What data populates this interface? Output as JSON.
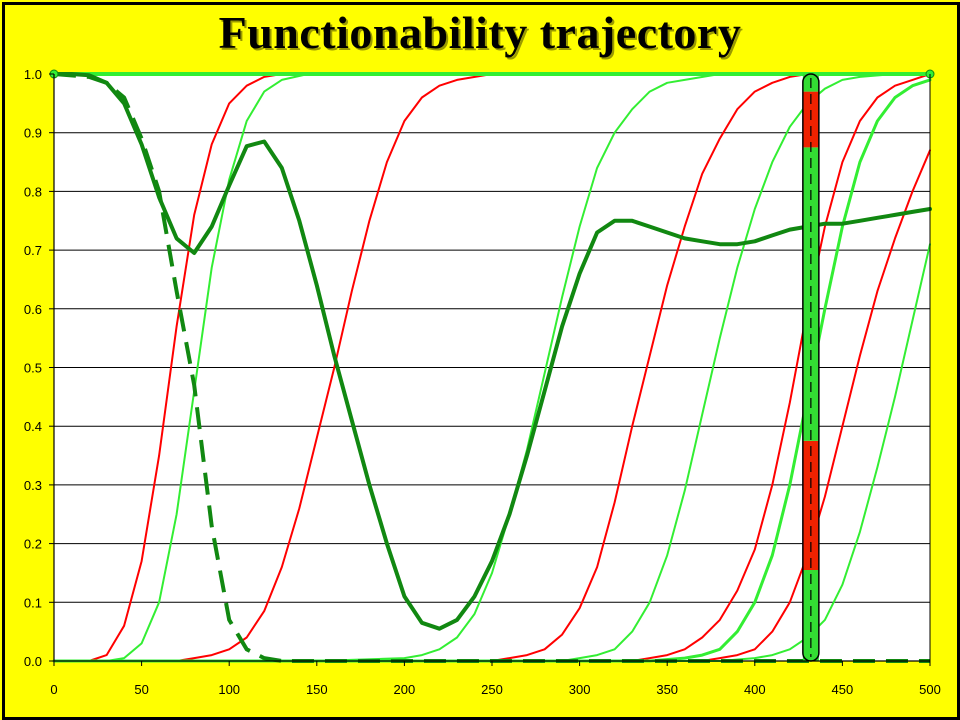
{
  "chart_data": {
    "type": "line",
    "title": "Functionability trajectory",
    "xlabel": "",
    "ylabel": "",
    "xlim": [
      0,
      500
    ],
    "ylim": [
      0,
      1
    ],
    "x_ticks": [
      "0",
      "50",
      "100",
      "150",
      "200",
      "250",
      "300",
      "350",
      "400",
      "450",
      "500"
    ],
    "y_ticks": [
      "0.0",
      "0.1",
      "0.2",
      "0.3",
      "0.4",
      "0.5",
      "0.6",
      "0.7",
      "0.8",
      "0.9",
      "1.0"
    ],
    "grid": true,
    "legend": "none",
    "colors": {
      "page": "#ffff00",
      "plot_area": "#ffffff",
      "red": "#ff0000",
      "light_green": "#33ee33",
      "dark_green": "#118811",
      "bar_green": "#33dd33",
      "bar_red": "#ee2200"
    },
    "series": [
      {
        "color": "#ff0000",
        "width": 2,
        "style": "solid",
        "points": [
          [
            0,
            0
          ],
          [
            20,
            0
          ],
          [
            30,
            0.01
          ],
          [
            40,
            0.06
          ],
          [
            50,
            0.17
          ],
          [
            60,
            0.35
          ],
          [
            70,
            0.57
          ],
          [
            80,
            0.76
          ],
          [
            90,
            0.88
          ],
          [
            100,
            0.95
          ],
          [
            110,
            0.98
          ],
          [
            120,
            0.995
          ],
          [
            130,
            1
          ],
          [
            500,
            1
          ]
        ]
      },
      {
        "color": "#33ee33",
        "width": 2,
        "style": "solid",
        "points": [
          [
            0,
            0
          ],
          [
            30,
            0
          ],
          [
            40,
            0.005
          ],
          [
            50,
            0.03
          ],
          [
            60,
            0.1
          ],
          [
            70,
            0.25
          ],
          [
            80,
            0.46
          ],
          [
            90,
            0.67
          ],
          [
            100,
            0.82
          ],
          [
            110,
            0.92
          ],
          [
            120,
            0.97
          ],
          [
            130,
            0.99
          ],
          [
            145,
            1
          ],
          [
            500,
            1
          ]
        ]
      },
      {
        "color": "#ff0000",
        "width": 2,
        "style": "solid",
        "points": [
          [
            0,
            0
          ],
          [
            70,
            0
          ],
          [
            80,
            0.005
          ],
          [
            90,
            0.01
          ],
          [
            100,
            0.02
          ],
          [
            110,
            0.04
          ],
          [
            120,
            0.085
          ],
          [
            130,
            0.16
          ],
          [
            140,
            0.26
          ],
          [
            150,
            0.38
          ],
          [
            160,
            0.5
          ],
          [
            170,
            0.63
          ],
          [
            180,
            0.75
          ],
          [
            190,
            0.85
          ],
          [
            200,
            0.92
          ],
          [
            210,
            0.96
          ],
          [
            220,
            0.98
          ],
          [
            230,
            0.99
          ],
          [
            250,
            1
          ],
          [
            500,
            1
          ]
        ]
      },
      {
        "color": "#33ee33",
        "width": 2,
        "style": "solid",
        "points": [
          [
            0,
            0
          ],
          [
            150,
            0
          ],
          [
            200,
            0.005
          ],
          [
            210,
            0.01
          ],
          [
            220,
            0.02
          ],
          [
            230,
            0.04
          ],
          [
            240,
            0.08
          ],
          [
            250,
            0.15
          ],
          [
            260,
            0.25
          ],
          [
            270,
            0.36
          ],
          [
            280,
            0.49
          ],
          [
            290,
            0.62
          ],
          [
            300,
            0.74
          ],
          [
            310,
            0.84
          ],
          [
            320,
            0.9
          ],
          [
            330,
            0.94
          ],
          [
            340,
            0.97
          ],
          [
            350,
            0.985
          ],
          [
            360,
            0.99
          ],
          [
            380,
            1
          ],
          [
            500,
            1
          ]
        ]
      },
      {
        "color": "#ff0000",
        "width": 2,
        "style": "solid",
        "points": [
          [
            0,
            0
          ],
          [
            250,
            0
          ],
          [
            260,
            0.005
          ],
          [
            270,
            0.01
          ],
          [
            280,
            0.02
          ],
          [
            290,
            0.045
          ],
          [
            300,
            0.09
          ],
          [
            310,
            0.16
          ],
          [
            320,
            0.27
          ],
          [
            330,
            0.4
          ],
          [
            340,
            0.52
          ],
          [
            350,
            0.64
          ],
          [
            360,
            0.74
          ],
          [
            370,
            0.83
          ],
          [
            380,
            0.89
          ],
          [
            390,
            0.94
          ],
          [
            400,
            0.97
          ],
          [
            410,
            0.985
          ],
          [
            420,
            0.995
          ],
          [
            430,
            1
          ],
          [
            500,
            1
          ]
        ]
      },
      {
        "color": "#33ee33",
        "width": 2,
        "style": "solid",
        "points": [
          [
            0,
            0
          ],
          [
            290,
            0
          ],
          [
            300,
            0.005
          ],
          [
            310,
            0.01
          ],
          [
            320,
            0.02
          ],
          [
            330,
            0.05
          ],
          [
            340,
            0.1
          ],
          [
            350,
            0.18
          ],
          [
            360,
            0.29
          ],
          [
            370,
            0.42
          ],
          [
            380,
            0.55
          ],
          [
            390,
            0.67
          ],
          [
            400,
            0.77
          ],
          [
            410,
            0.85
          ],
          [
            420,
            0.91
          ],
          [
            430,
            0.95
          ],
          [
            440,
            0.975
          ],
          [
            450,
            0.99
          ],
          [
            460,
            0.995
          ],
          [
            480,
            1
          ],
          [
            500,
            1
          ]
        ]
      },
      {
        "color": "#ff0000",
        "width": 2,
        "style": "solid",
        "points": [
          [
            0,
            0
          ],
          [
            330,
            0
          ],
          [
            340,
            0.005
          ],
          [
            350,
            0.01
          ],
          [
            360,
            0.02
          ],
          [
            370,
            0.04
          ],
          [
            380,
            0.07
          ],
          [
            390,
            0.12
          ],
          [
            400,
            0.19
          ],
          [
            410,
            0.3
          ],
          [
            420,
            0.44
          ],
          [
            430,
            0.6
          ],
          [
            440,
            0.74
          ],
          [
            450,
            0.85
          ],
          [
            460,
            0.92
          ],
          [
            470,
            0.96
          ],
          [
            480,
            0.98
          ],
          [
            490,
            0.99
          ],
          [
            500,
            1
          ]
        ]
      },
      {
        "color": "#33ee33",
        "width": 3,
        "style": "solid",
        "points": [
          [
            0,
            0
          ],
          [
            340,
            0
          ],
          [
            360,
            0.005
          ],
          [
            370,
            0.01
          ],
          [
            380,
            0.02
          ],
          [
            390,
            0.05
          ],
          [
            400,
            0.1
          ],
          [
            410,
            0.18
          ],
          [
            420,
            0.3
          ],
          [
            430,
            0.45
          ],
          [
            440,
            0.6
          ],
          [
            450,
            0.74
          ],
          [
            460,
            0.85
          ],
          [
            470,
            0.92
          ],
          [
            480,
            0.96
          ],
          [
            490,
            0.98
          ],
          [
            500,
            0.99
          ]
        ]
      },
      {
        "color": "#ff0000",
        "width": 2,
        "style": "solid",
        "points": [
          [
            0,
            0
          ],
          [
            370,
            0
          ],
          [
            380,
            0.005
          ],
          [
            390,
            0.01
          ],
          [
            400,
            0.02
          ],
          [
            410,
            0.05
          ],
          [
            420,
            0.1
          ],
          [
            430,
            0.18
          ],
          [
            440,
            0.28
          ],
          [
            450,
            0.4
          ],
          [
            460,
            0.52
          ],
          [
            470,
            0.63
          ],
          [
            480,
            0.72
          ],
          [
            490,
            0.8
          ],
          [
            500,
            0.87
          ]
        ]
      },
      {
        "color": "#33ee33",
        "width": 2,
        "style": "solid",
        "points": [
          [
            0,
            0
          ],
          [
            380,
            0
          ],
          [
            400,
            0.005
          ],
          [
            410,
            0.01
          ],
          [
            420,
            0.02
          ],
          [
            430,
            0.04
          ],
          [
            440,
            0.07
          ],
          [
            450,
            0.13
          ],
          [
            460,
            0.22
          ],
          [
            470,
            0.33
          ],
          [
            480,
            0.45
          ],
          [
            490,
            0.58
          ],
          [
            500,
            0.71
          ]
        ]
      },
      {
        "color": "#33ee33",
        "width": 4,
        "style": "solid",
        "points": [
          [
            0,
            1
          ],
          [
            500,
            1
          ]
        ]
      },
      {
        "color": "#118811",
        "width": 4,
        "style": "solid",
        "points": [
          [
            0,
            1
          ],
          [
            10,
            1
          ],
          [
            20,
            0.998
          ],
          [
            30,
            0.985
          ],
          [
            40,
            0.95
          ],
          [
            50,
            0.88
          ],
          [
            60,
            0.79
          ],
          [
            70,
            0.72
          ],
          [
            80,
            0.695
          ],
          [
            90,
            0.74
          ],
          [
            100,
            0.81
          ],
          [
            110,
            0.877
          ],
          [
            120,
            0.885
          ],
          [
            130,
            0.84
          ],
          [
            140,
            0.75
          ],
          [
            150,
            0.64
          ],
          [
            160,
            0.52
          ],
          [
            170,
            0.41
          ],
          [
            180,
            0.3
          ],
          [
            190,
            0.2
          ],
          [
            200,
            0.11
          ],
          [
            210,
            0.065
          ],
          [
            220,
            0.055
          ],
          [
            230,
            0.07
          ],
          [
            240,
            0.11
          ],
          [
            250,
            0.17
          ],
          [
            260,
            0.25
          ],
          [
            270,
            0.35
          ],
          [
            280,
            0.46
          ],
          [
            290,
            0.57
          ],
          [
            300,
            0.66
          ],
          [
            310,
            0.73
          ],
          [
            320,
            0.75
          ],
          [
            330,
            0.75
          ],
          [
            340,
            0.74
          ],
          [
            350,
            0.73
          ],
          [
            360,
            0.72
          ],
          [
            370,
            0.715
          ],
          [
            380,
            0.71
          ],
          [
            390,
            0.71
          ],
          [
            400,
            0.715
          ],
          [
            410,
            0.725
          ],
          [
            420,
            0.735
          ],
          [
            430,
            0.74
          ],
          [
            440,
            0.745
          ],
          [
            450,
            0.745
          ],
          [
            460,
            0.75
          ],
          [
            470,
            0.755
          ],
          [
            480,
            0.76
          ],
          [
            490,
            0.765
          ],
          [
            500,
            0.77
          ]
        ]
      },
      {
        "color": "#118811",
        "width": 4,
        "style": "dashed",
        "points": [
          [
            0,
            1
          ],
          [
            20,
            0.995
          ],
          [
            30,
            0.985
          ],
          [
            40,
            0.96
          ],
          [
            50,
            0.89
          ],
          [
            60,
            0.8
          ],
          [
            70,
            0.63
          ],
          [
            80,
            0.47
          ],
          [
            90,
            0.23
          ],
          [
            100,
            0.07
          ],
          [
            110,
            0.02
          ],
          [
            120,
            0.005
          ],
          [
            130,
            0
          ],
          [
            500,
            0
          ]
        ]
      }
    ],
    "annotations": {
      "marker_x": 432,
      "end_markers": [
        [
          0,
          1
        ],
        [
          500,
          1
        ]
      ],
      "vertical_bar": {
        "x": 432,
        "segments": [
          {
            "from": 0,
            "to": 0.155,
            "color": "#33dd33"
          },
          {
            "from": 0.155,
            "to": 0.375,
            "color": "#ee2200"
          },
          {
            "from": 0.375,
            "to": 0.875,
            "color": "#33dd33"
          },
          {
            "from": 0.875,
            "to": 0.97,
            "color": "#ee2200"
          },
          {
            "from": 0.97,
            "to": 1,
            "color": "#33dd33"
          }
        ]
      }
    }
  }
}
